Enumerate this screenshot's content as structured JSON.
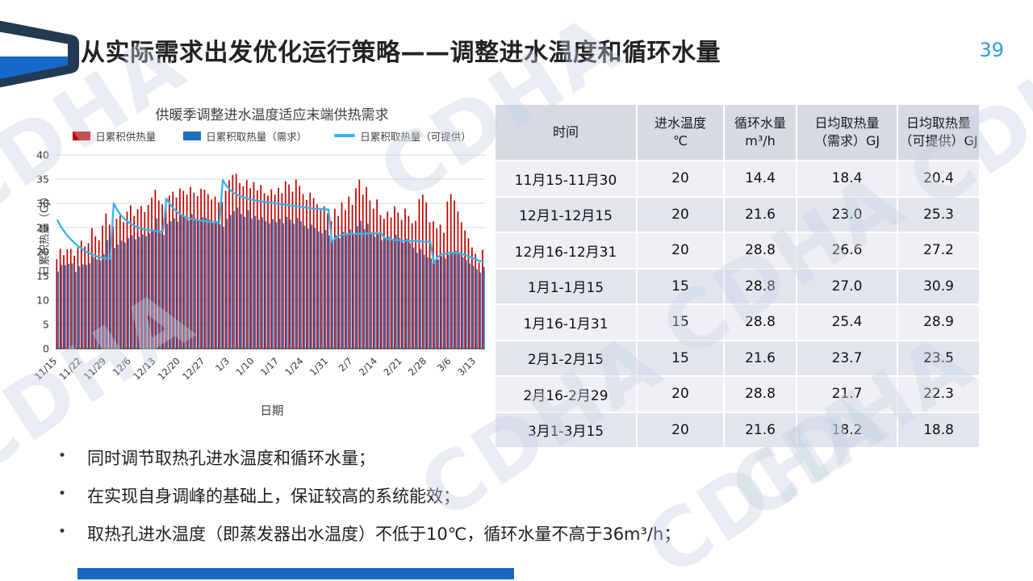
{
  "slide": {
    "title": "从实际需求出发优化运行策略——调整进水温度和循环水量",
    "page_number": "39",
    "watermark_text": "CDHA",
    "footer_bar_color": "#1667c4",
    "accent_blue": "#2f9fdb"
  },
  "chart": {
    "title": "供暖季调整进水温度适应末端供热需求",
    "xlabel": "日期",
    "ylabel": "日累积热量（GJ）"
  },
  "chart_data": {
    "type": "bar+line",
    "x_start": "11/15",
    "x_end": "3/15",
    "n_points": 122,
    "x_tick_labels": [
      "11/15",
      "11/22",
      "11/29",
      "12/6",
      "12/13",
      "12/20",
      "12/27",
      "1/3",
      "1/10",
      "1/17",
      "1/24",
      "1/31",
      "2/7",
      "2/14",
      "2/21",
      "2/28",
      "3/6",
      "3/13"
    ],
    "x_tick_every": 7,
    "ylim": [
      0,
      40
    ],
    "y_ticks": [
      0,
      5,
      10,
      15,
      20,
      25,
      30,
      35,
      40
    ],
    "grid": true,
    "legend_position": "top",
    "series": [
      {
        "name": "日累积供热量",
        "type": "bar",
        "color": "#c00000",
        "values": [
          18.5,
          20.6,
          19.3,
          20.5,
          20.6,
          19.2,
          20.9,
          22.3,
          21.1,
          21.8,
          24.9,
          23.2,
          22.4,
          25.4,
          27.9,
          25.6,
          25.2,
          26.8,
          27.5,
          26.1,
          28.3,
          29.6,
          27.4,
          28.8,
          29.4,
          28.2,
          29.7,
          31.2,
          32.8,
          30.6,
          29.8,
          30.9,
          31.6,
          32.4,
          31.2,
          33.1,
          32.6,
          31.8,
          33.4,
          32.2,
          31.5,
          33.0,
          32.8,
          31.9,
          30.8,
          31.4,
          30.2,
          30.3,
          32.6,
          34.8,
          35.9,
          36.1,
          34.2,
          33.5,
          34.8,
          33.1,
          34.4,
          32.7,
          33.8,
          32.1,
          31.6,
          32.9,
          31.8,
          33.2,
          32.1,
          34.6,
          33.9,
          32.4,
          34.9,
          33.6,
          31.9,
          30.7,
          32.2,
          31.1,
          29.8,
          28.6,
          29.4,
          27.9,
          26.3,
          28.9,
          27.4,
          30.2,
          28.6,
          31.4,
          29.7,
          33.1,
          34.9,
          31.8,
          33.4,
          30.6,
          28.9,
          30.8,
          27.6,
          26.8,
          28.3,
          27.1,
          29.4,
          28.1,
          26.6,
          28.9,
          27.4,
          25.9,
          26.4,
          30.9,
          31.8,
          30.2,
          26.1,
          26.3,
          24.8,
          25.6,
          23.9,
          30.4,
          31.9,
          30.6,
          28.3,
          26.1,
          24.4,
          22.8,
          20.9,
          19.6,
          17.8,
          20.4
        ]
      },
      {
        "name": "日累积取热量（需求）",
        "type": "bar",
        "color": "#2070c0",
        "values": [
          15.9,
          17.3,
          17.2,
          17.5,
          17.6,
          15.8,
          17.0,
          17.4,
          17.3,
          17.6,
          18.9,
          18.4,
          18.2,
          19.5,
          22.4,
          23.0,
          20.8,
          21.5,
          22.3,
          21.9,
          22.8,
          23.4,
          22.6,
          23.1,
          23.6,
          23.2,
          23.8,
          24.6,
          26.9,
          23.9,
          23.5,
          25.8,
          26.3,
          26.9,
          26.2,
          27.4,
          27.1,
          26.5,
          27.8,
          26.9,
          26.4,
          27.2,
          27.0,
          26.6,
          25.9,
          26.3,
          25.7,
          25.2,
          26.8,
          27.6,
          28.4,
          29.1,
          27.8,
          27.2,
          28.6,
          26.9,
          27.4,
          26.6,
          27.1,
          26.3,
          25.9,
          26.7,
          26.1,
          26.8,
          25.9,
          27.2,
          26.6,
          25.8,
          27.0,
          26.3,
          25.4,
          24.8,
          25.6,
          24.9,
          24.2,
          23.8,
          24.5,
          23.4,
          22.1,
          23.4,
          22.8,
          24.1,
          23.5,
          24.6,
          23.8,
          25.3,
          26.4,
          24.7,
          25.8,
          23.9,
          23.1,
          23.6,
          22.4,
          22.6,
          23.1,
          22.4,
          23.5,
          22.8,
          21.9,
          22.7,
          21.8,
          20.9,
          19.8,
          20.6,
          19.4,
          18.9,
          18.6,
          17.8,
          18.4,
          19.1,
          18.6,
          19.4,
          19.8,
          20.2,
          19.6,
          18.9,
          18.3,
          17.6,
          17.1,
          16.4,
          15.7,
          16.9
        ]
      },
      {
        "name": "日累积取热量（可提供）",
        "type": "line",
        "color": "#35b5ea",
        "values": [
          26.5,
          25.2,
          24.1,
          23.2,
          22.4,
          21.7,
          21.1,
          20.6,
          20.1,
          19.7,
          19.4,
          19.1,
          18.9,
          18.7,
          18.6,
          18.5,
          30.0,
          28.6,
          27.6,
          26.8,
          26.2,
          25.7,
          25.3,
          25.0,
          24.8,
          24.6,
          24.5,
          24.4,
          24.3,
          24.2,
          24.2,
          31.0,
          29.8,
          28.9,
          28.2,
          27.7,
          27.3,
          27.0,
          26.8,
          26.6,
          26.5,
          26.4,
          26.3,
          26.2,
          26.1,
          26.1,
          26.0,
          34.8,
          33.6,
          32.8,
          32.2,
          31.8,
          31.5,
          31.2,
          31.0,
          30.8,
          30.6,
          30.5,
          30.4,
          30.3,
          30.2,
          30.1,
          30.0,
          29.9,
          29.8,
          29.7,
          29.6,
          29.5,
          29.4,
          29.3,
          29.2,
          29.1,
          29.0,
          28.9,
          28.9,
          28.8,
          28.8,
          28.7,
          22.0,
          22.8,
          23.3,
          23.5,
          23.6,
          23.7,
          23.7,
          23.7,
          23.7,
          23.7,
          23.8,
          23.8,
          23.8,
          23.8,
          23.8,
          22.8,
          22.6,
          22.5,
          22.4,
          22.4,
          22.3,
          22.3,
          22.3,
          22.2,
          22.2,
          22.2,
          22.1,
          22.1,
          22.0,
          17.6,
          18.9,
          19.4,
          19.6,
          19.7,
          19.8,
          19.8,
          19.7,
          19.5,
          19.3,
          19.0,
          18.7,
          18.4,
          18.1,
          17.9
        ]
      }
    ]
  },
  "table": {
    "headers": [
      "时间",
      "进水温度\n℃",
      "循环水量\nm³/h",
      "日均取热量\n（需求）GJ",
      "日均取热量\n（可提供）GJ"
    ],
    "rows": [
      [
        "11月15-11月30",
        "20",
        "14.4",
        "18.4",
        "20.4"
      ],
      [
        "12月1-12月15",
        "20",
        "21.6",
        "23.0",
        "25.3"
      ],
      [
        "12月16-12月31",
        "20",
        "28.8",
        "26.6",
        "27.2"
      ],
      [
        "1月1-1月15",
        "15",
        "28.8",
        "27.0",
        "30.9"
      ],
      [
        "1月16-1月31",
        "15",
        "28.8",
        "25.4",
        "28.9"
      ],
      [
        "2月1-2月15",
        "15",
        "21.6",
        "23.7",
        "23.5"
      ],
      [
        "2月16-2月29",
        "20",
        "28.8",
        "21.7",
        "22.3"
      ],
      [
        "3月1-3月15",
        "20",
        "21.6",
        "18.2",
        "18.8"
      ]
    ]
  },
  "bullets": [
    "同时调节取热孔进水温度和循环水量；",
    "在实现自身调峰的基础上，保证较高的系统能效；",
    "取热孔进水温度（即蒸发器出水温度）不低于10℃，循环水量不高于36m³/h；"
  ]
}
